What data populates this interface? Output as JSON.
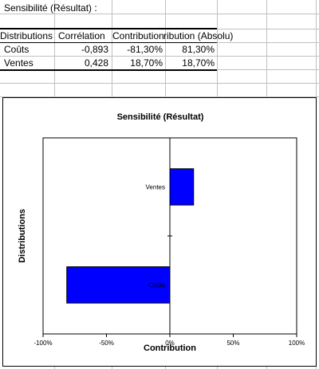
{
  "sheet": {
    "title": "Sensibilité (Résultat) :",
    "headers": [
      "Distributions",
      "Corrélation",
      "Contribution",
      "Contribution (Absolu)"
    ],
    "header_visible": [
      "Distributions",
      "Corrélation",
      "Contribution",
      "ribution (Absolu)"
    ],
    "rows": [
      {
        "name": "Coûts",
        "correlation": "-0,893",
        "contribution": "-81,30%",
        "absolute": "81,30%"
      },
      {
        "name": "Ventes",
        "correlation": "0,428",
        "contribution": "18,70%",
        "absolute": "18,70%"
      }
    ]
  },
  "chart_data": {
    "type": "bar",
    "orientation": "horizontal",
    "title": "Sensibilité (Résultat)",
    "xlabel": "Contribution",
    "ylabel": "Distributions",
    "categories": [
      "Coûts",
      "Ventes"
    ],
    "values": [
      -81.3,
      18.7
    ],
    "xlim": [
      -100,
      100
    ],
    "xticks": [
      "-100%",
      "-50%",
      "0%",
      "50%",
      "100%"
    ],
    "bar_color": "#0000ff",
    "grid": false,
    "legend": "none"
  }
}
